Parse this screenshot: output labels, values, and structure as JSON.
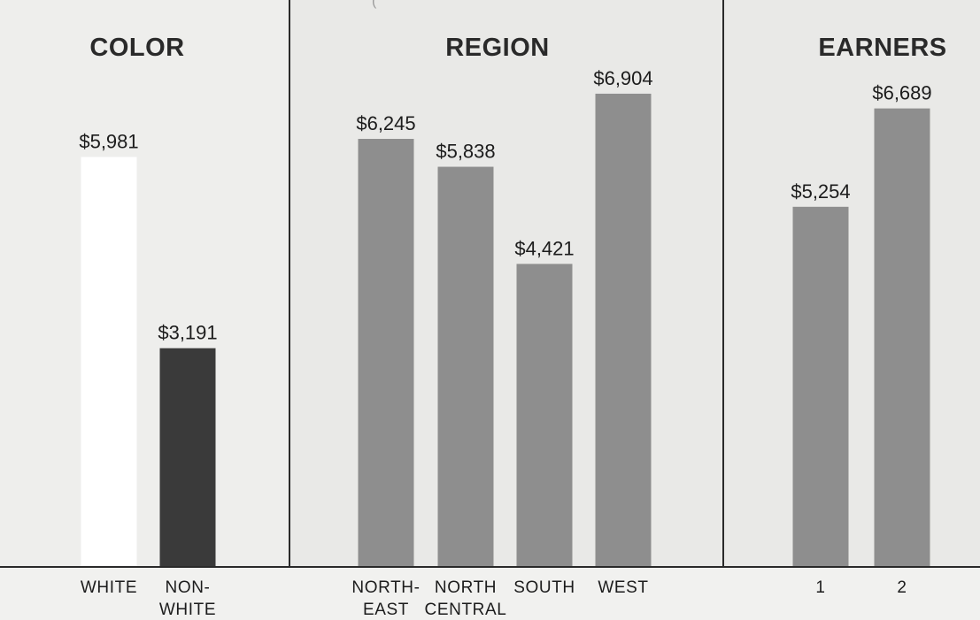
{
  "colors": {
    "white_bar": "#ffffff",
    "nonwhite_bar": "#3a3a3a",
    "gray_bar": "#8e8e8e",
    "divider": "#2a2a2a",
    "panel_bg": "#e9e9e7",
    "white_panel_bg": "#eeeeec"
  },
  "chart_data": {
    "type": "bar",
    "title": "",
    "top_note": "(",
    "ylim": [
      0,
      8000
    ],
    "panels": [
      {
        "title": "COLOR",
        "categories": [
          "WHITE NON-",
          ""
        ],
        "bars": [
          {
            "tick": [
              "WHITE"
            ],
            "value": 5981,
            "label": "$5,981",
            "color": "#ffffff"
          },
          {
            "tick": [
              "NON-",
              "WHITE"
            ],
            "value": 3191,
            "label": "$3,191",
            "color": "#3a3a3a"
          }
        ]
      },
      {
        "title": "REGION",
        "bars": [
          {
            "tick": [
              "NORTH-",
              "EAST"
            ],
            "value": 6245,
            "label": "$6,245",
            "color": "#8e8e8e"
          },
          {
            "tick": [
              "NORTH",
              "CENTRAL"
            ],
            "value": 5838,
            "label": "$5,838",
            "color": "#8e8e8e"
          },
          {
            "tick": [
              "SOUTH"
            ],
            "value": 4421,
            "label": "$4,421",
            "color": "#8e8e8e"
          },
          {
            "tick": [
              "WEST"
            ],
            "value": 6904,
            "label": "$6,904",
            "color": "#8e8e8e"
          }
        ]
      },
      {
        "title": "EARNERS",
        "bars": [
          {
            "tick": [
              "1"
            ],
            "value": 5254,
            "label": "$5,254",
            "color": "#8e8e8e"
          },
          {
            "tick": [
              "2"
            ],
            "value": 6689,
            "label": "$6,689",
            "color": "#8e8e8e"
          }
        ]
      }
    ]
  }
}
